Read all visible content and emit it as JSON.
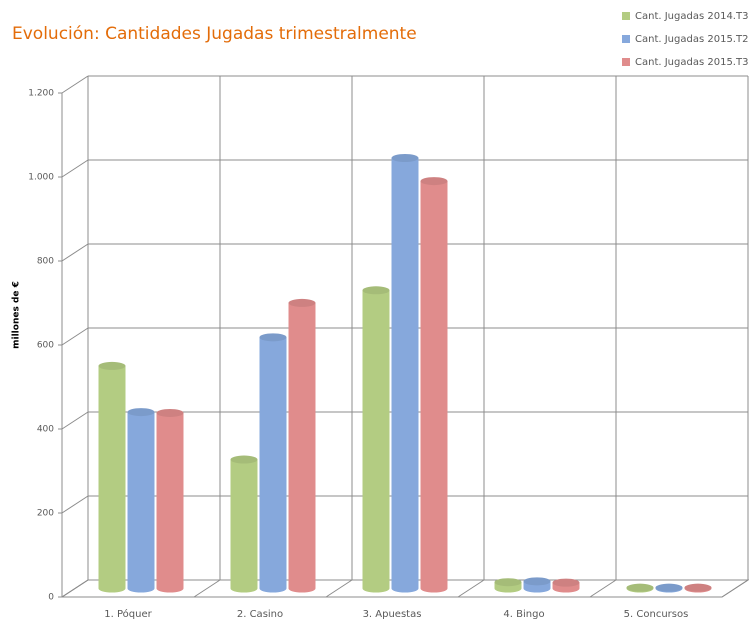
{
  "chart_data": {
    "type": "bar3d",
    "title": "Evolución: Cantidades Jugadas trimestralmente",
    "y_label": "millones de €",
    "categories": [
      "1. Póquer",
      "2. Casino",
      "3. Apuestas",
      "4. Bingo",
      "5. Concursos"
    ],
    "series": [
      {
        "name": "Cant. Jugadas 2014.T3",
        "color": "#b3cc82",
        "values": [
          530,
          307,
          710,
          15,
          2
        ]
      },
      {
        "name": "Cant. Jugadas 2015.T2",
        "color": "#86a8dc",
        "values": [
          420,
          598,
          1025,
          17,
          2
        ]
      },
      {
        "name": "Cant. Jugadas 2015.T3",
        "color": "#e08c8c",
        "values": [
          418,
          680,
          970,
          14,
          2
        ]
      }
    ],
    "ylim": [
      0,
      1200
    ],
    "yticks": [
      0,
      200,
      400,
      600,
      800,
      {
        "value": 1000,
        "label": "1.000"
      },
      {
        "value": 1200,
        "label": "1.200"
      }
    ],
    "title_color": "#e36c09",
    "grid": true
  }
}
